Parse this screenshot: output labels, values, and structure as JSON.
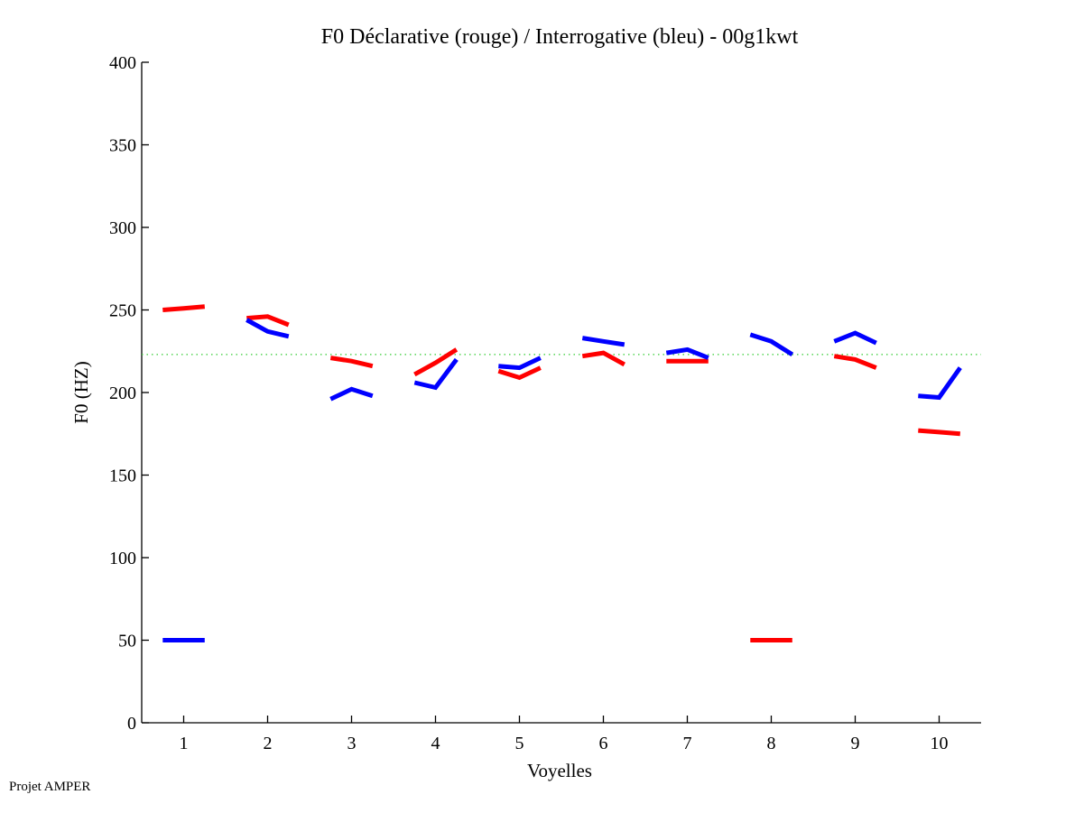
{
  "chart_data": {
    "type": "line",
    "title": "F0 Déclarative (rouge) / Interrogative (bleu) - 00g1kwt",
    "xlabel": "Voyelles",
    "ylabel": "F0 (HZ)",
    "xlim": [
      0.5,
      10.5
    ],
    "ylim": [
      0,
      400
    ],
    "xticks": [
      1,
      2,
      3,
      4,
      5,
      6,
      7,
      8,
      9,
      10
    ],
    "yticks": [
      0,
      50,
      100,
      150,
      200,
      250,
      300,
      350,
      400
    ],
    "grid": false,
    "reference_line": {
      "y": 223,
      "color": "#33cc33",
      "style": "dotted"
    },
    "series": [
      {
        "name": "Déclarative (rouge)",
        "color": "#ff0000",
        "segments": [
          {
            "vowel": 1,
            "values": [
              250,
              251,
              252
            ]
          },
          {
            "vowel": 2,
            "values": [
              245,
              246,
              241
            ]
          },
          {
            "vowel": 3,
            "values": [
              221,
              219,
              216
            ]
          },
          {
            "vowel": 4,
            "values": [
              211,
              218,
              226
            ]
          },
          {
            "vowel": 5,
            "values": [
              213,
              209,
              215
            ]
          },
          {
            "vowel": 6,
            "values": [
              222,
              224,
              217
            ]
          },
          {
            "vowel": 7,
            "values": [
              219,
              219,
              219
            ]
          },
          {
            "vowel": 8,
            "values": [
              50,
              50,
              50
            ]
          },
          {
            "vowel": 9,
            "values": [
              222,
              220,
              215
            ]
          },
          {
            "vowel": 10,
            "values": [
              177,
              176,
              175
            ]
          }
        ]
      },
      {
        "name": "Interrogative (bleu)",
        "color": "#0000ff",
        "segments": [
          {
            "vowel": 1,
            "values": [
              50,
              50,
              50
            ]
          },
          {
            "vowel": 2,
            "values": [
              244,
              237,
              234
            ]
          },
          {
            "vowel": 3,
            "values": [
              196,
              202,
              198
            ]
          },
          {
            "vowel": 4,
            "values": [
              206,
              203,
              220
            ]
          },
          {
            "vowel": 5,
            "values": [
              216,
              215,
              221
            ]
          },
          {
            "vowel": 6,
            "values": [
              233,
              231,
              229
            ]
          },
          {
            "vowel": 7,
            "values": [
              224,
              226,
              221
            ]
          },
          {
            "vowel": 8,
            "values": [
              235,
              231,
              223
            ]
          },
          {
            "vowel": 9,
            "values": [
              231,
              236,
              230
            ]
          },
          {
            "vowel": 10,
            "values": [
              198,
              197,
              215
            ]
          }
        ]
      }
    ]
  },
  "footer": {
    "credit": "Projet AMPER"
  }
}
